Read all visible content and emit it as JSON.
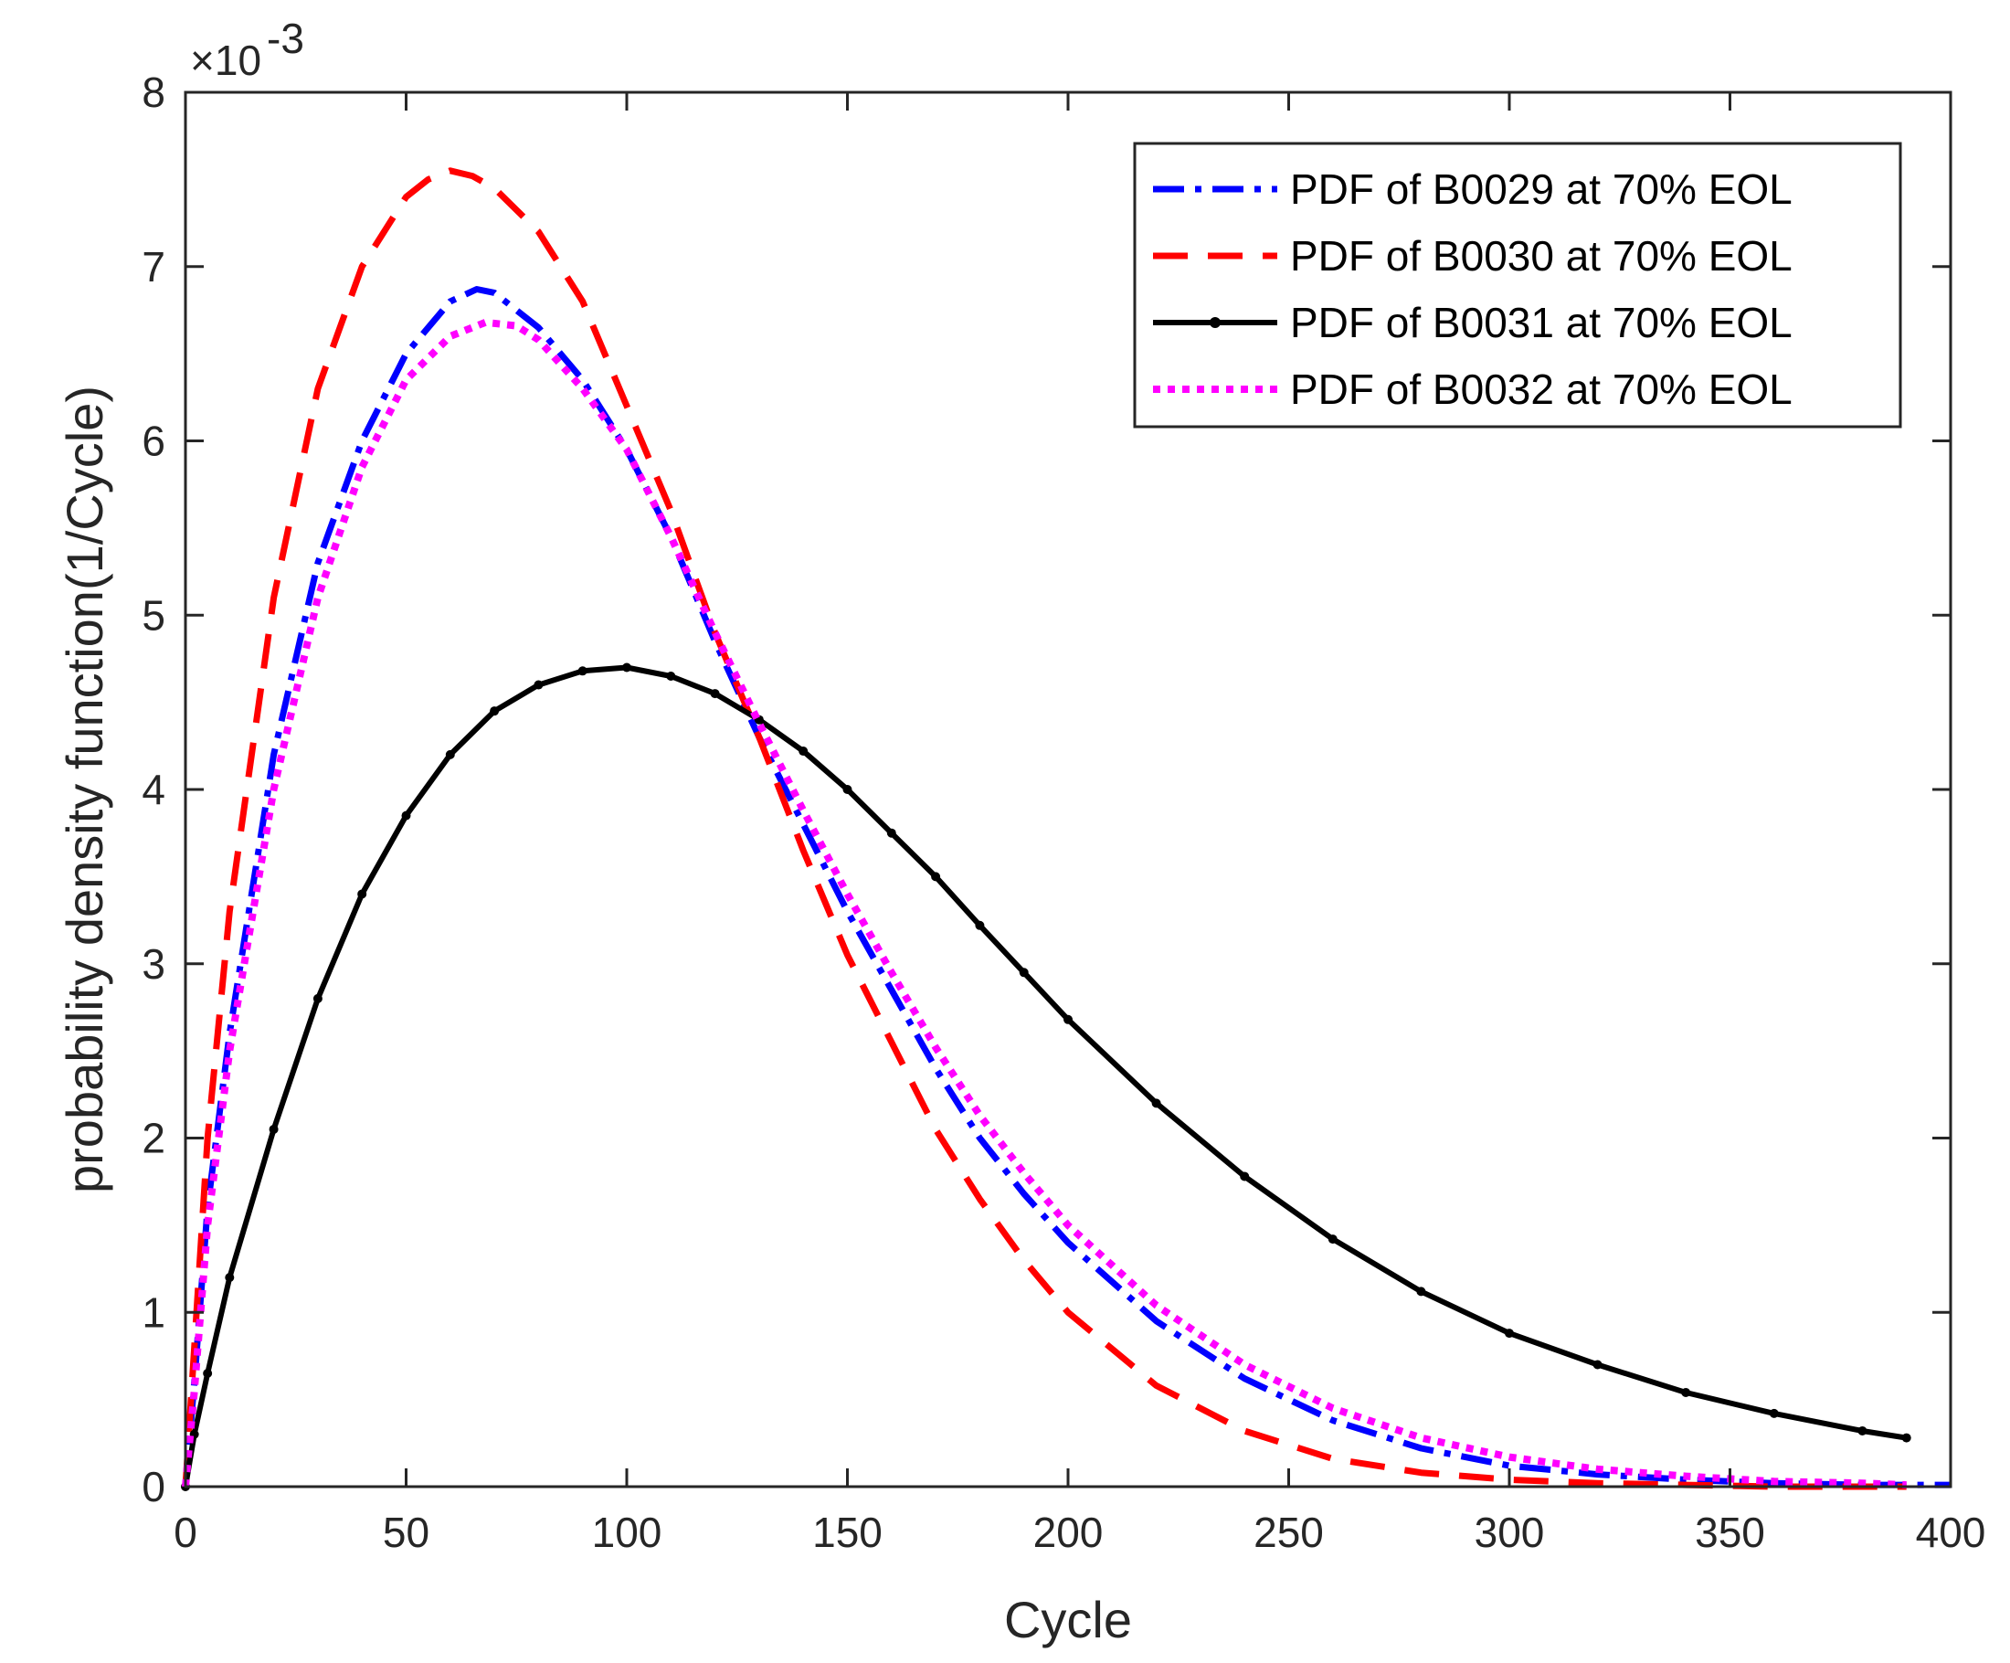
{
  "chart_data": {
    "type": "line",
    "title": "",
    "xlabel": "Cycle",
    "ylabel": "probability density function(1/Cycle)",
    "xlim": [
      0,
      400
    ],
    "ylim": [
      0,
      8
    ],
    "xticks": [
      0,
      50,
      100,
      150,
      200,
      250,
      300,
      350,
      400
    ],
    "yticks": [
      0,
      1,
      2,
      3,
      4,
      5,
      6,
      7,
      8
    ],
    "y_exponent_base": "×10",
    "y_exponent_power": "-3",
    "y_scale_note": "y values in units of 1e-3",
    "legend_position": "top-right",
    "grid": false,
    "series": [
      {
        "name": "PDF of B0029 at 70% EOL",
        "color": "#0000ff",
        "style": "dash-dot",
        "x": [
          0,
          2,
          5,
          10,
          20,
          30,
          40,
          50,
          60,
          66,
          70,
          80,
          90,
          100,
          110,
          120,
          130,
          140,
          150,
          160,
          170,
          180,
          190,
          200,
          220,
          240,
          260,
          280,
          300,
          320,
          340,
          360,
          380,
          400
        ],
        "y": [
          0,
          0.6,
          1.6,
          2.6,
          4.2,
          5.3,
          6.0,
          6.5,
          6.8,
          6.87,
          6.85,
          6.65,
          6.35,
          5.95,
          5.45,
          4.85,
          4.3,
          3.8,
          3.3,
          2.85,
          2.4,
          2.0,
          1.68,
          1.4,
          0.95,
          0.62,
          0.38,
          0.22,
          0.12,
          0.07,
          0.04,
          0.02,
          0.01,
          0.01
        ]
      },
      {
        "name": "PDF of B0030 at 70% EOL",
        "color": "#ff0000",
        "style": "dashed",
        "x": [
          0,
          2,
          5,
          10,
          20,
          30,
          40,
          50,
          55,
          60,
          65,
          70,
          80,
          90,
          100,
          110,
          120,
          130,
          140,
          150,
          160,
          170,
          180,
          190,
          200,
          220,
          240,
          260,
          280,
          300,
          320,
          340,
          360,
          380,
          390
        ],
        "y": [
          0,
          0.8,
          2.0,
          3.3,
          5.1,
          6.3,
          7.0,
          7.4,
          7.5,
          7.55,
          7.52,
          7.45,
          7.2,
          6.8,
          6.2,
          5.6,
          4.9,
          4.3,
          3.65,
          3.05,
          2.55,
          2.05,
          1.65,
          1.3,
          1.0,
          0.58,
          0.32,
          0.16,
          0.08,
          0.04,
          0.02,
          0.01,
          0.0,
          0.0,
          0.0
        ]
      },
      {
        "name": "PDF of B0031 at 70% EOL",
        "color": "#000000",
        "style": "solid-dots",
        "x": [
          0,
          2,
          5,
          10,
          20,
          30,
          40,
          50,
          60,
          70,
          80,
          90,
          100,
          110,
          120,
          130,
          140,
          150,
          160,
          170,
          180,
          190,
          200,
          220,
          240,
          260,
          280,
          300,
          320,
          340,
          360,
          380,
          390
        ],
        "y": [
          0,
          0.3,
          0.65,
          1.2,
          2.05,
          2.8,
          3.4,
          3.85,
          4.2,
          4.45,
          4.6,
          4.68,
          4.7,
          4.65,
          4.55,
          4.4,
          4.22,
          4.0,
          3.75,
          3.5,
          3.22,
          2.95,
          2.68,
          2.2,
          1.78,
          1.42,
          1.12,
          0.88,
          0.7,
          0.54,
          0.42,
          0.32,
          0.28
        ]
      },
      {
        "name": "PDF of  B0032 at 70% EOL",
        "color": "#ff00ff",
        "style": "dotted",
        "x": [
          0,
          2,
          5,
          10,
          20,
          30,
          40,
          50,
          60,
          68,
          75,
          80,
          90,
          100,
          110,
          120,
          130,
          140,
          150,
          160,
          170,
          180,
          190,
          200,
          220,
          240,
          260,
          280,
          300,
          320,
          340,
          360,
          380,
          390
        ],
        "y": [
          0,
          0.55,
          1.5,
          2.5,
          4.0,
          5.1,
          5.85,
          6.35,
          6.6,
          6.68,
          6.66,
          6.58,
          6.3,
          5.95,
          5.45,
          4.9,
          4.38,
          3.88,
          3.4,
          2.95,
          2.52,
          2.13,
          1.8,
          1.5,
          1.04,
          0.7,
          0.45,
          0.28,
          0.17,
          0.1,
          0.06,
          0.03,
          0.02,
          0.01
        ]
      }
    ]
  }
}
